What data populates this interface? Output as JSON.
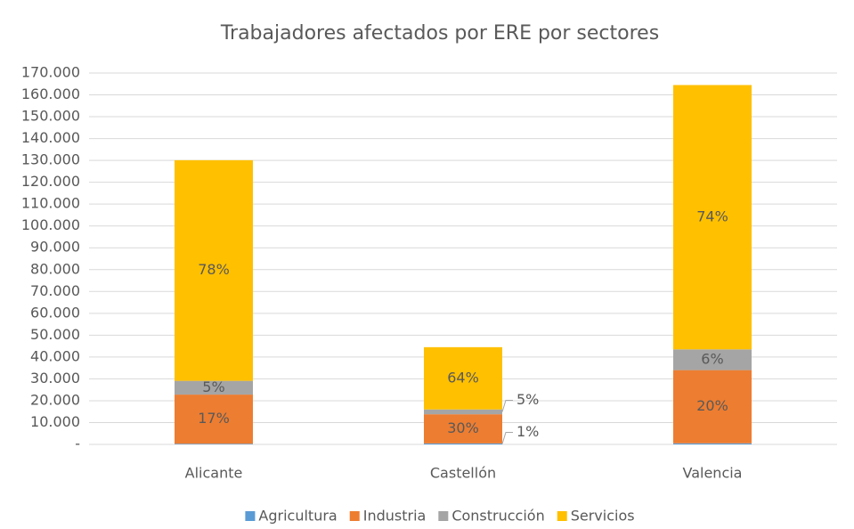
{
  "chart_data": {
    "type": "stacked_bar",
    "title": "Trabajadores afectados por ERE por sectores",
    "categories": [
      "Alicante",
      "Castellón",
      "Valencia"
    ],
    "series": [
      {
        "name": "Agricultura",
        "color": "#5b9bd5",
        "values": [
          300,
          450,
          500
        ],
        "value_labels": [
          null,
          "1%",
          null
        ]
      },
      {
        "name": "Industria",
        "color": "#ed7d31",
        "values": [
          22500,
          13350,
          33500
        ],
        "value_labels": [
          "17%",
          "30%",
          "20%"
        ]
      },
      {
        "name": "Construcción",
        "color": "#a5a5a5",
        "values": [
          6300,
          2200,
          9500
        ],
        "value_labels": [
          "5%",
          "5%",
          "6%"
        ]
      },
      {
        "name": "Servicios",
        "color": "#ffc000",
        "values": [
          101000,
          28500,
          121000
        ],
        "value_labels": [
          "78%",
          "64%",
          "74%"
        ]
      }
    ],
    "ylim": [
      0,
      170000
    ],
    "yticks": [
      {
        "value": 0,
        "label": "-"
      },
      {
        "value": 10000,
        "label": "10.000"
      },
      {
        "value": 20000,
        "label": "20.000"
      },
      {
        "value": 30000,
        "label": "30.000"
      },
      {
        "value": 40000,
        "label": "40.000"
      },
      {
        "value": 50000,
        "label": "50.000"
      },
      {
        "value": 60000,
        "label": "60.000"
      },
      {
        "value": 70000,
        "label": "70.000"
      },
      {
        "value": 80000,
        "label": "80.000"
      },
      {
        "value": 90000,
        "label": "90.000"
      },
      {
        "value": 100000,
        "label": "100.000"
      },
      {
        "value": 110000,
        "label": "110.000"
      },
      {
        "value": 120000,
        "label": "120.000"
      },
      {
        "value": 130000,
        "label": "130.000"
      },
      {
        "value": 140000,
        "label": "140.000"
      },
      {
        "value": 150000,
        "label": "150.000"
      },
      {
        "value": 160000,
        "label": "160.000"
      },
      {
        "value": 170000,
        "label": "170.000"
      }
    ],
    "grid": true,
    "legend": "bottom"
  }
}
